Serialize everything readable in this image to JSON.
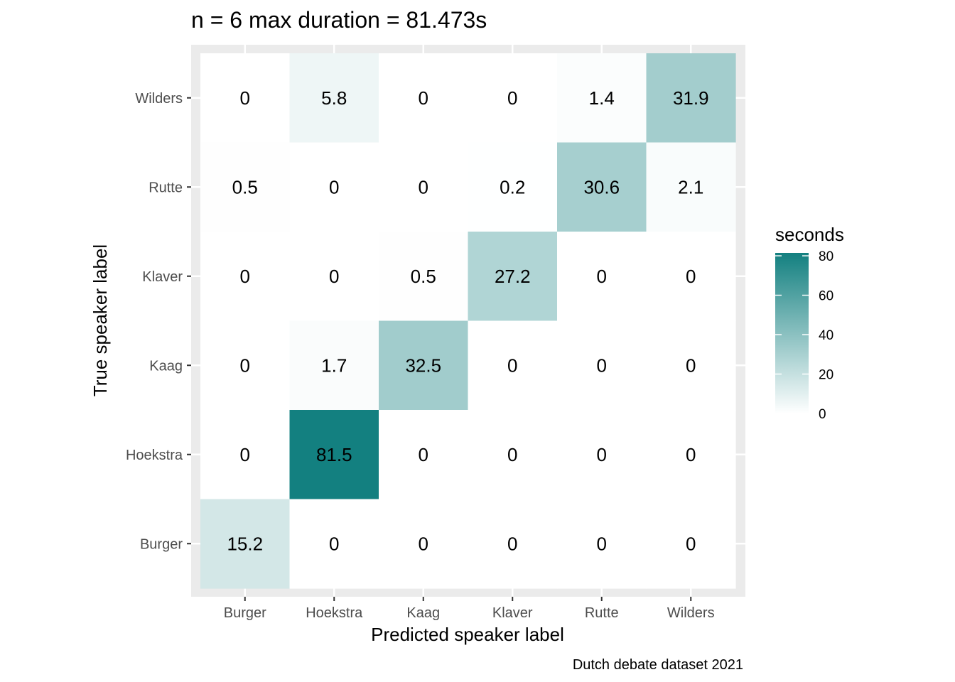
{
  "chart_data": {
    "type": "heatmap",
    "title": "n = 6 max duration = 81.473s",
    "xlabel": "Predicted speaker label",
    "ylabel": "True speaker label",
    "caption": "Dutch debate dataset 2021",
    "x_categories": [
      "Burger",
      "Hoekstra",
      "Kaag",
      "Klaver",
      "Rutte",
      "Wilders"
    ],
    "y_categories_top_to_bottom": [
      "Wilders",
      "Rutte",
      "Klaver",
      "Kaag",
      "Hoekstra",
      "Burger"
    ],
    "values": [
      [
        0,
        5.8,
        0,
        0,
        1.4,
        31.9
      ],
      [
        0.5,
        0,
        0,
        0.2,
        30.6,
        2.1
      ],
      [
        0,
        0,
        0.5,
        27.2,
        0,
        0
      ],
      [
        0,
        1.7,
        32.5,
        0,
        0,
        0
      ],
      [
        0,
        81.5,
        0,
        0,
        0,
        0
      ],
      [
        15.2,
        0,
        0,
        0,
        0,
        0
      ]
    ],
    "legend": {
      "title": "seconds",
      "ticks": [
        0,
        20,
        40,
        60,
        80
      ],
      "range": [
        0,
        81.473
      ],
      "low_color": "#ffffff",
      "high_color": "#138080"
    },
    "panel_background": "#ebebeb",
    "grid": true
  }
}
